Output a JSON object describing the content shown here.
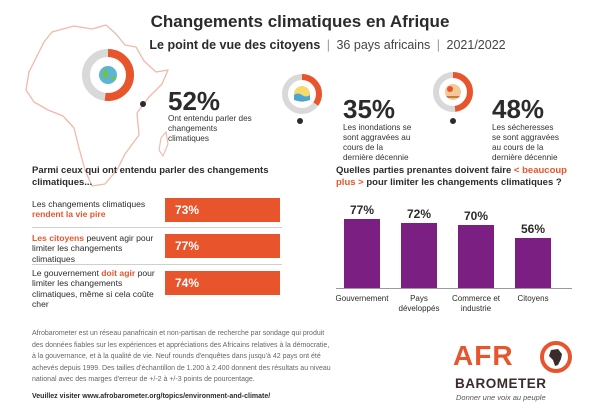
{
  "header": {
    "title": "Changements climatiques en Afrique",
    "subtitle_lead": "Le point de vue des citoyens",
    "subtitle_sep1": "|",
    "subtitle_countries": "36 pays africains",
    "subtitle_sep2": "|",
    "subtitle_years": "2021/2022"
  },
  "stats": [
    {
      "value": "52%",
      "fraction": 0.52,
      "text": "Ont entendu parler des changements climatiques",
      "icon": "earth-icon"
    },
    {
      "value": "35%",
      "fraction": 0.35,
      "text": "Les inondations se sont aggravées au cours de la dernière décennie",
      "icon": "flood-icon"
    },
    {
      "value": "48%",
      "fraction": 0.48,
      "text": "Les sécheresses se sont aggravées au cours de la dernière décennie",
      "icon": "drought-icon"
    }
  ],
  "left_section": {
    "heading": "Parmi ceux qui ont entendu parler des changements climatiques...",
    "rows": [
      {
        "pre": "Les changements climatiques ",
        "em": "rendent la vie pire",
        "post": "",
        "value": "73%"
      },
      {
        "pre": "",
        "em": "Les citoyens",
        "post": " peuvent agir pour limiter les changements climatiques",
        "value": "77%"
      },
      {
        "pre": "Le gouvernement ",
        "em": "doit agir",
        "post": " pour limiter les changements climatiques, même si cela coûte cher",
        "value": "74%"
      }
    ]
  },
  "right_section": {
    "heading_pre": "Quelles parties prenantes doivent faire ",
    "heading_hl": "< beaucoup plus >",
    "heading_post": " pour limiter les changements climatiques ?"
  },
  "chart_data": {
    "type": "bar",
    "title": "Quelles parties prenantes doivent faire < beaucoup plus > pour limiter les changements climatiques ?",
    "categories": [
      "Gouvernement",
      "Pays développés",
      "Commerce et industrie",
      "Citoyens"
    ],
    "category_lines": [
      [
        "Gouvernement"
      ],
      [
        "Pays",
        "développés"
      ],
      [
        "Commerce et",
        "industrie"
      ],
      [
        "Citoyens"
      ]
    ],
    "values": [
      77,
      72,
      70,
      56
    ],
    "labels": [
      "77%",
      "72%",
      "70%",
      "56%"
    ],
    "unit": "%",
    "ylim": [
      0,
      100
    ],
    "xlabel": "",
    "ylabel": "",
    "grid": false,
    "bar_color": "#7b2082"
  },
  "footer": {
    "body": "Afrobarometer est un réseau panafricain et non-partisan de recherche par sondage qui produit des données fiables sur les expériences et appréciations des Africains relatives à la démocratie, à la gouvernance, et à la qualité de vie. Neuf rounds d'enquêtes dans jusqu'à 42 pays ont été achevés depuis 1999. Des tailles d'échantillon de 1.200 à 2.400 donnent des résultats au niveau national avec des marges d'erreur de +/-2 à +/-3 points de pourcentage.",
    "link": "Veuillez visiter www.afrobarometer.org/topics/environment-and-climate/"
  },
  "logo": {
    "afro": "AFR",
    "barometer": "BAROMETER",
    "tagline": "Donner une voix au peuple"
  },
  "colors": {
    "accent": "#e8542c",
    "purple": "#7b2082",
    "ring_track": "#d9d9d9",
    "text": "#2b2b2b"
  }
}
